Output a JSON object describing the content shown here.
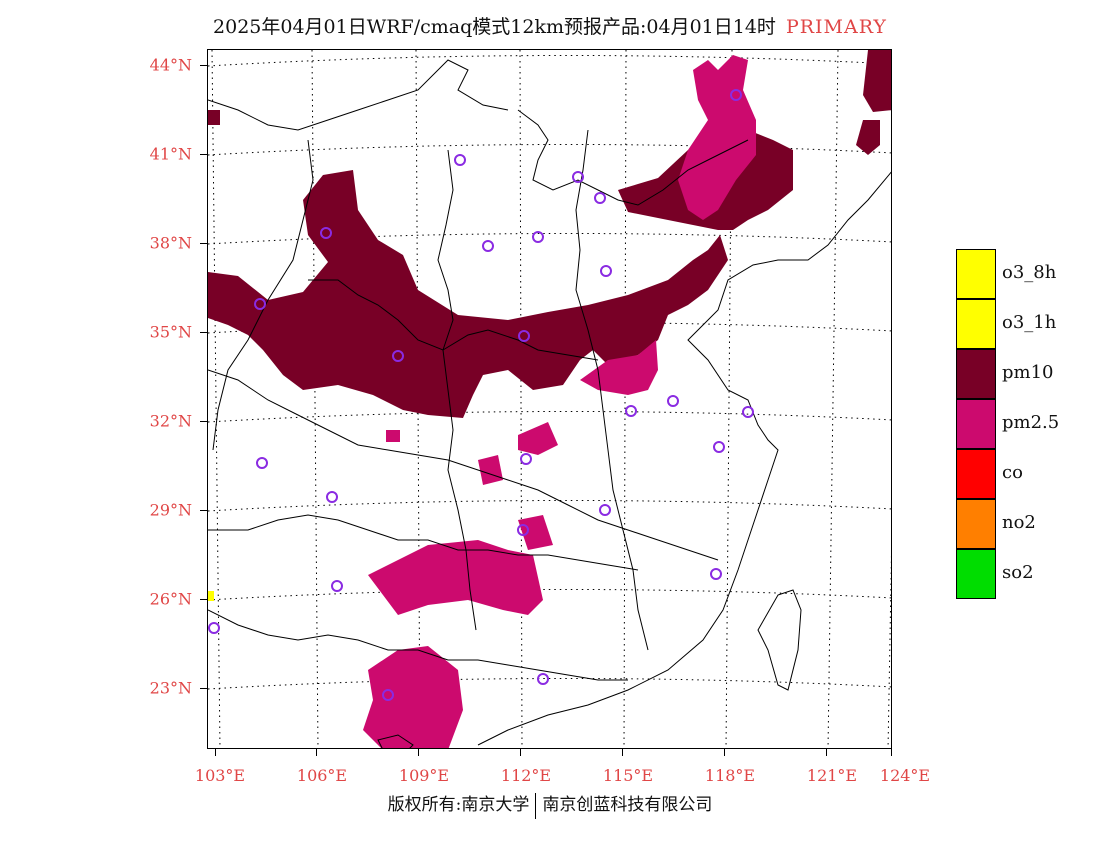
{
  "title": {
    "main": "2025年04月01日WRF/cmaq模式12km预报产品:04月01日14时",
    "tag": "PRIMARY",
    "tag_color": "#e04646"
  },
  "axes": {
    "lat_labels": [
      "44°N",
      "41°N",
      "38°N",
      "35°N",
      "32°N",
      "29°N",
      "26°N",
      "23°N"
    ],
    "lon_labels": [
      "103°E",
      "106°E",
      "109°E",
      "112°E",
      "115°E",
      "118°E",
      "121°E",
      "124°E"
    ],
    "label_color": "#e04646"
  },
  "legend": [
    {
      "label": "o3_8h",
      "color": "#ffff00"
    },
    {
      "label": "o3_1h",
      "color": "#ffff00"
    },
    {
      "label": "pm10",
      "color": "#780026"
    },
    {
      "label": "pm2.5",
      "color": "#cc0a6e"
    },
    {
      "label": "co",
      "color": "#ff0000"
    },
    {
      "label": "no2",
      "color": "#ff7f00"
    },
    {
      "label": "so2",
      "color": "#00dd00"
    }
  ],
  "footer": {
    "left": "版权所有:南京大学",
    "right": "南京创蓝科技有限公司"
  },
  "map": {
    "pm10_color": "#780026",
    "pm25_color": "#cc0a6e",
    "station_color": "#8a2be2"
  }
}
